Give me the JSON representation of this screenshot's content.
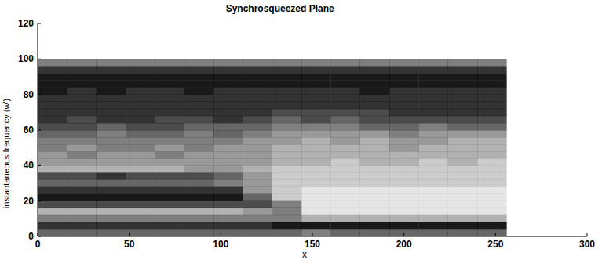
{
  "chart_data": {
    "type": "heatmap",
    "title": "Synchrosqueezed Plane",
    "x_label": "x",
    "y_label": "instantaneous frequency (w')",
    "xlim": [
      0,
      300
    ],
    "ylim": [
      0,
      120
    ],
    "xticks": [
      0,
      50,
      100,
      150,
      200,
      250,
      300
    ],
    "yticks": [
      0,
      20,
      40,
      60,
      80,
      100,
      120
    ],
    "color": "#000000",
    "zlim": [
      0,
      9
    ],
    "x_bins": [
      0,
      16,
      32,
      48,
      64,
      80,
      96,
      112,
      128,
      144,
      160,
      176,
      192,
      208,
      224,
      240,
      256
    ],
    "y_bins": [
      0,
      4,
      8,
      12,
      16,
      20,
      24,
      28,
      32,
      36,
      40,
      44,
      48,
      52,
      56,
      60,
      64,
      68,
      72,
      76,
      80,
      84,
      88,
      92,
      96,
      100
    ],
    "values": [
      [
        6,
        6,
        6,
        6,
        6,
        6,
        6,
        6,
        6,
        5,
        6,
        6,
        6,
        6,
        6,
        6
      ],
      [
        8,
        8,
        8,
        8,
        8,
        8,
        8,
        8,
        9,
        9,
        9,
        9,
        9,
        9,
        9,
        9
      ],
      [
        5,
        5,
        5,
        5,
        5,
        5,
        5,
        5,
        5,
        3,
        3,
        3,
        3,
        3,
        3,
        3
      ],
      [
        3,
        3,
        3,
        3,
        3,
        3,
        3,
        4,
        5,
        1,
        1,
        1,
        1,
        1,
        1,
        1
      ],
      [
        7,
        7,
        7,
        7,
        7,
        7,
        7,
        7,
        5,
        1,
        1,
        1,
        1,
        1,
        1,
        1
      ],
      [
        9,
        9,
        9,
        9,
        9,
        9,
        9,
        6,
        2,
        1,
        1,
        1,
        1,
        1,
        1,
        1
      ],
      [
        8,
        8,
        8,
        8,
        8,
        8,
        8,
        4,
        2,
        1,
        1,
        1,
        1,
        1,
        1,
        1
      ],
      [
        6,
        6,
        6,
        6,
        6,
        6,
        5,
        4,
        2,
        2,
        2,
        2,
        2,
        2,
        2,
        2
      ],
      [
        7,
        7,
        8,
        7,
        7,
        7,
        6,
        4,
        2,
        2,
        2,
        2,
        2,
        2,
        2,
        2
      ],
      [
        3,
        3,
        3,
        3,
        3,
        4,
        4,
        3,
        2,
        2,
        2,
        2,
        2,
        2,
        2,
        2
      ],
      [
        4,
        4,
        4,
        4,
        4,
        4,
        4,
        4,
        3,
        3,
        2,
        3,
        3,
        2,
        3,
        2
      ],
      [
        4,
        5,
        4,
        4,
        5,
        4,
        4,
        4,
        3,
        3,
        3,
        3,
        3,
        3,
        3,
        3
      ],
      [
        5,
        4,
        5,
        5,
        4,
        5,
        4,
        4,
        3,
        3,
        3,
        3,
        4,
        3,
        3,
        3
      ],
      [
        5,
        5,
        5,
        5,
        5,
        5,
        5,
        4,
        4,
        3,
        4,
        3,
        4,
        4,
        3,
        3
      ],
      [
        6,
        6,
        5,
        6,
        6,
        5,
        6,
        5,
        4,
        4,
        4,
        4,
        5,
        4,
        4,
        4
      ],
      [
        7,
        7,
        6,
        7,
        7,
        6,
        6,
        6,
        5,
        5,
        5,
        6,
        6,
        5,
        6,
        6
      ],
      [
        8,
        7,
        8,
        8,
        7,
        7,
        8,
        7,
        6,
        7,
        6,
        7,
        7,
        7,
        7,
        7
      ],
      [
        8,
        8,
        8,
        8,
        8,
        8,
        8,
        8,
        7,
        7,
        7,
        7,
        8,
        8,
        8,
        8
      ],
      [
        8,
        8,
        8,
        8,
        8,
        8,
        8,
        8,
        8,
        8,
        8,
        8,
        8,
        8,
        8,
        8
      ],
      [
        8,
        8,
        8,
        8,
        8,
        8,
        8,
        8,
        8,
        8,
        8,
        8,
        8,
        8,
        8,
        8
      ],
      [
        9,
        8,
        9,
        8,
        8,
        9,
        8,
        8,
        8,
        8,
        8,
        9,
        8,
        8,
        8,
        8
      ],
      [
        9,
        9,
        9,
        9,
        9,
        9,
        9,
        9,
        9,
        9,
        9,
        9,
        9,
        9,
        9,
        9
      ],
      [
        9,
        9,
        9,
        9,
        9,
        9,
        9,
        9,
        9,
        9,
        9,
        9,
        9,
        9,
        9,
        9
      ],
      [
        8,
        8,
        8,
        8,
        8,
        8,
        8,
        8,
        8,
        8,
        8,
        8,
        8,
        8,
        8,
        8
      ],
      [
        5,
        5,
        5,
        5,
        5,
        5,
        5,
        5,
        5,
        5,
        5,
        5,
        5,
        5,
        5,
        5
      ]
    ]
  }
}
